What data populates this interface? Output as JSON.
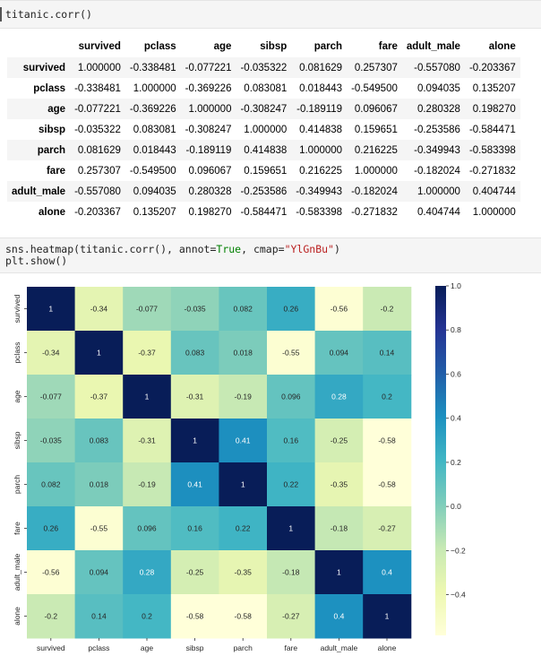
{
  "code_cell_1": "titanic.corr()",
  "code_cell_2": {
    "line1_prefix": "sns.heatmap(titanic.corr(), annot=",
    "line1_kw": "True",
    "line1_mid": ", cmap=",
    "line1_str": "\"YlGnBu\"",
    "line1_suffix": ")",
    "line2": "plt.show()"
  },
  "table": {
    "columns": [
      "survived",
      "pclass",
      "age",
      "sibsp",
      "parch",
      "fare",
      "adult_male",
      "alone"
    ],
    "rows": [
      {
        "label": "survived",
        "values": [
          "1.000000",
          "-0.338481",
          "-0.077221",
          "-0.035322",
          "0.081629",
          "0.257307",
          "-0.557080",
          "-0.203367"
        ]
      },
      {
        "label": "pclass",
        "values": [
          "-0.338481",
          "1.000000",
          "-0.369226",
          "0.083081",
          "0.018443",
          "-0.549500",
          "0.094035",
          "0.135207"
        ]
      },
      {
        "label": "age",
        "values": [
          "-0.077221",
          "-0.369226",
          "1.000000",
          "-0.308247",
          "-0.189119",
          "0.096067",
          "0.280328",
          "0.198270"
        ]
      },
      {
        "label": "sibsp",
        "values": [
          "-0.035322",
          "0.083081",
          "-0.308247",
          "1.000000",
          "0.414838",
          "0.159651",
          "-0.253586",
          "-0.584471"
        ]
      },
      {
        "label": "parch",
        "values": [
          "0.081629",
          "0.018443",
          "-0.189119",
          "0.414838",
          "1.000000",
          "0.216225",
          "-0.349943",
          "-0.583398"
        ]
      },
      {
        "label": "fare",
        "values": [
          "0.257307",
          "-0.549500",
          "0.096067",
          "0.159651",
          "0.216225",
          "1.000000",
          "-0.182024",
          "-0.271832"
        ]
      },
      {
        "label": "adult_male",
        "values": [
          "-0.557080",
          "0.094035",
          "0.280328",
          "-0.253586",
          "-0.349943",
          "-0.182024",
          "1.000000",
          "0.404744"
        ]
      },
      {
        "label": "alone",
        "values": [
          "-0.203367",
          "0.135207",
          "0.198270",
          "-0.584471",
          "-0.583398",
          "-0.271832",
          "0.404744",
          "1.000000"
        ]
      }
    ]
  },
  "chart_data": {
    "type": "heatmap",
    "cmap": "YlGnBu",
    "labels": [
      "survived",
      "pclass",
      "age",
      "sibsp",
      "parch",
      "fare",
      "adult_male",
      "alone"
    ],
    "values": [
      [
        1.0,
        -0.338481,
        -0.077221,
        -0.035322,
        0.081629,
        0.257307,
        -0.55708,
        -0.203367
      ],
      [
        -0.338481,
        1.0,
        -0.369226,
        0.083081,
        0.018443,
        -0.5495,
        0.094035,
        0.135207
      ],
      [
        -0.077221,
        -0.369226,
        1.0,
        -0.308247,
        -0.189119,
        0.096067,
        0.280328,
        0.19827
      ],
      [
        -0.035322,
        0.083081,
        -0.308247,
        1.0,
        0.414838,
        0.159651,
        -0.253586,
        -0.584471
      ],
      [
        0.081629,
        0.018443,
        -0.189119,
        0.414838,
        1.0,
        0.216225,
        -0.349943,
        -0.583398
      ],
      [
        0.257307,
        -0.5495,
        0.096067,
        0.159651,
        0.216225,
        1.0,
        -0.182024,
        -0.271832
      ],
      [
        -0.55708,
        0.094035,
        0.280328,
        -0.253586,
        -0.349943,
        -0.182024,
        1.0,
        0.404744
      ],
      [
        -0.203367,
        0.135207,
        0.19827,
        -0.584471,
        -0.583398,
        -0.271832,
        0.404744,
        1.0
      ]
    ],
    "annotations": [
      [
        "1",
        "-0.34",
        "-0.077",
        "-0.035",
        "0.082",
        "0.26",
        "-0.56",
        "-0.2"
      ],
      [
        "-0.34",
        "1",
        "-0.37",
        "0.083",
        "0.018",
        "-0.55",
        "0.094",
        "0.14"
      ],
      [
        "-0.077",
        "-0.37",
        "1",
        "-0.31",
        "-0.19",
        "0.096",
        "0.28",
        "0.2"
      ],
      [
        "-0.035",
        "0.083",
        "-0.31",
        "1",
        "0.41",
        "0.16",
        "-0.25",
        "-0.58"
      ],
      [
        "0.082",
        "0.018",
        "-0.19",
        "0.41",
        "1",
        "0.22",
        "-0.35",
        "-0.58"
      ],
      [
        "0.26",
        "-0.55",
        "0.096",
        "0.16",
        "0.22",
        "1",
        "-0.18",
        "-0.27"
      ],
      [
        "-0.56",
        "0.094",
        "0.28",
        "-0.25",
        "-0.35",
        "-0.18",
        "1",
        "0.4"
      ],
      [
        "-0.2",
        "0.14",
        "0.2",
        "-0.58",
        "-0.58",
        "-0.27",
        "0.4",
        "1"
      ]
    ],
    "colorbar": {
      "vmin": -0.584471,
      "vmax": 1.0,
      "ticks": [
        1.0,
        0.8,
        0.6,
        0.4,
        0.2,
        0.0,
        -0.2,
        -0.4
      ],
      "tick_labels": [
        "1.0",
        "0.8",
        "0.6",
        "0.4",
        "0.2",
        "0.0",
        "−0.2",
        "−0.4"
      ]
    }
  }
}
